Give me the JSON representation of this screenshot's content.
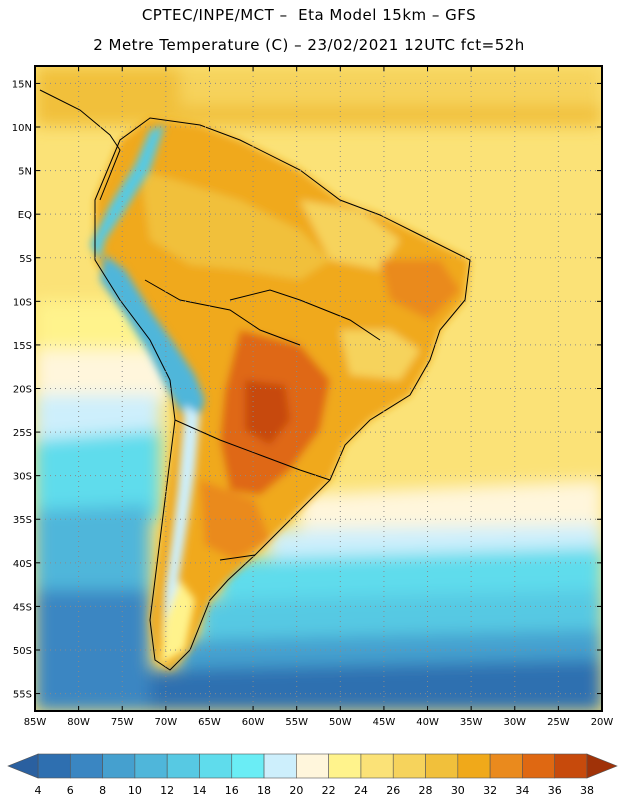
{
  "header": {
    "line1": "CPTEC/INPE/MCT –  Eta Model 15km – GFS",
    "line2": "2 Metre Temperature (C) – 23/02/2021 12UTC fct=52h"
  },
  "axes": {
    "lat_labels": [
      "15N",
      "10N",
      "5N",
      "EQ",
      "5S",
      "10S",
      "15S",
      "20S",
      "25S",
      "30S",
      "35S",
      "40S",
      "45S",
      "50S",
      "55S"
    ],
    "lon_labels": [
      "85W",
      "80W",
      "75W",
      "70W",
      "65W",
      "60W",
      "55W",
      "50W",
      "45W",
      "40W",
      "35W",
      "30W",
      "25W",
      "20W"
    ]
  },
  "colorbar": {
    "labels": [
      "4",
      "6",
      "8",
      "10",
      "12",
      "14",
      "16",
      "18",
      "20",
      "22",
      "24",
      "26",
      "28",
      "30",
      "32",
      "34",
      "36",
      "38"
    ],
    "colors": [
      "#2e6fb0",
      "#3a86c2",
      "#45a0cf",
      "#4fb6da",
      "#57c9e3",
      "#5fdcec",
      "#6aedf5",
      "#cdeffc",
      "#fff6dc",
      "#fff38c",
      "#fbe277",
      "#f6d35c",
      "#f1c03b",
      "#f0a91a",
      "#ea8a1d",
      "#df6812",
      "#c74a0c",
      "#b23a08"
    ],
    "low_arrow": "#2a60a0",
    "high_arrow": "#a03208"
  },
  "chart_data": {
    "type": "heatmap",
    "title": "2 Metre Temperature (C)",
    "model": "Eta Model 15km - GFS",
    "run": "23/02/2021 12UTC",
    "forecast": "fct=52h",
    "lon_range": [
      -85,
      -20
    ],
    "lat_range": [
      -57,
      17
    ],
    "unit": "C",
    "levels": [
      4,
      6,
      8,
      10,
      12,
      14,
      16,
      18,
      20,
      22,
      24,
      26,
      28,
      30,
      32,
      34,
      36,
      38
    ]
  }
}
